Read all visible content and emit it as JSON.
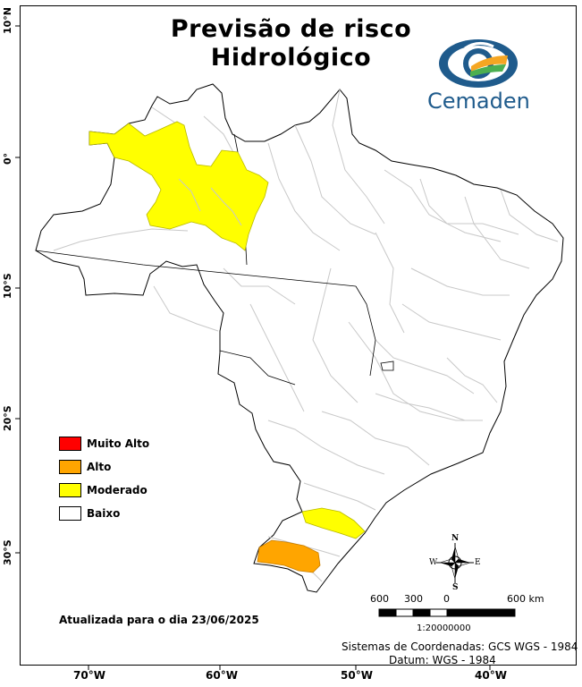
{
  "title_line1": "Previsão de risco",
  "title_line2": "Hidrológico",
  "brand": {
    "name": "Cemaden",
    "primary_color": "#1f5b8c",
    "accent_colors": [
      "#f5a623",
      "#4caf50"
    ]
  },
  "axes": {
    "latitude_ticks": [
      "10°N",
      "0°",
      "10°S",
      "20°S",
      "30°S"
    ],
    "longitude_ticks": [
      "70°W",
      "60°W",
      "50°W",
      "40°W"
    ]
  },
  "legend": [
    {
      "label": "Muito Alto",
      "color": "#ff0000"
    },
    {
      "label": "Alto",
      "color": "#ffa500"
    },
    {
      "label": "Moderado",
      "color": "#ffff00"
    },
    {
      "label": "Baixo",
      "color": "#ffffff"
    }
  ],
  "updated_text": "Atualizada para o dia 23/06/2025",
  "scale": {
    "labels": [
      "600",
      "300",
      "0",
      "600 km"
    ],
    "ratio": "1:20000000"
  },
  "compass": {
    "n": "N",
    "s": "S",
    "e": "E",
    "w": "W"
  },
  "crs_text": "Sistemas de Coordenadas: GCS WGS - 1984",
  "datum_text": "Datum: WGS - 1984"
}
